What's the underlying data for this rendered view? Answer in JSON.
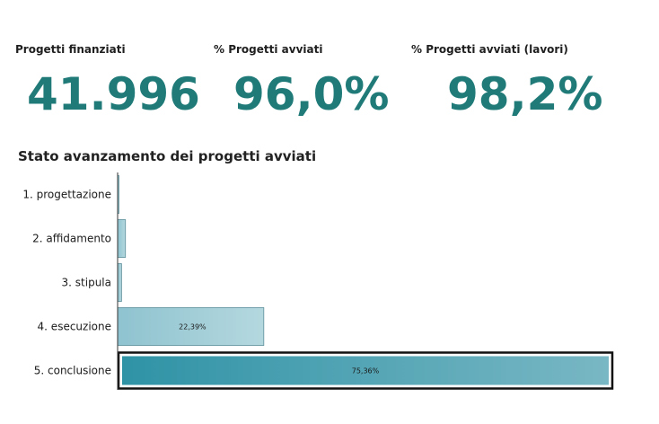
{
  "kpis": [
    {
      "label": "Progetti finanziati",
      "value": "41.996"
    },
    {
      "label": "% Progetti avviati",
      "value": "96,0%"
    },
    {
      "label": "% Progetti avviati (lavori)",
      "value": "98,2%"
    }
  ],
  "colors": {
    "kpi_value": "#1f7a78",
    "bar_light_start": "#8ec3cf",
    "bar_light_end": "#b5d8df",
    "bar_dark_start": "#2f93a6",
    "bar_dark_end": "#79b7c4",
    "bar_stroke": "#5a8e99"
  },
  "chart_data": {
    "type": "bar",
    "orientation": "horizontal",
    "title": "Stato avanzamento dei progetti avviati",
    "categories": [
      "1. progettazione",
      "2. affidamento",
      "3. stipula",
      "4. esecuzione",
      "5. conclusione"
    ],
    "values": [
      0.2,
      1.2,
      0.6,
      22.39,
      75.36
    ],
    "data_labels": [
      "",
      "",
      "",
      "22,39%",
      "75,36%"
    ],
    "highlighted": "5. conclusione",
    "xlim": [
      0,
      75.36
    ],
    "grid": false,
    "legend": "none"
  }
}
